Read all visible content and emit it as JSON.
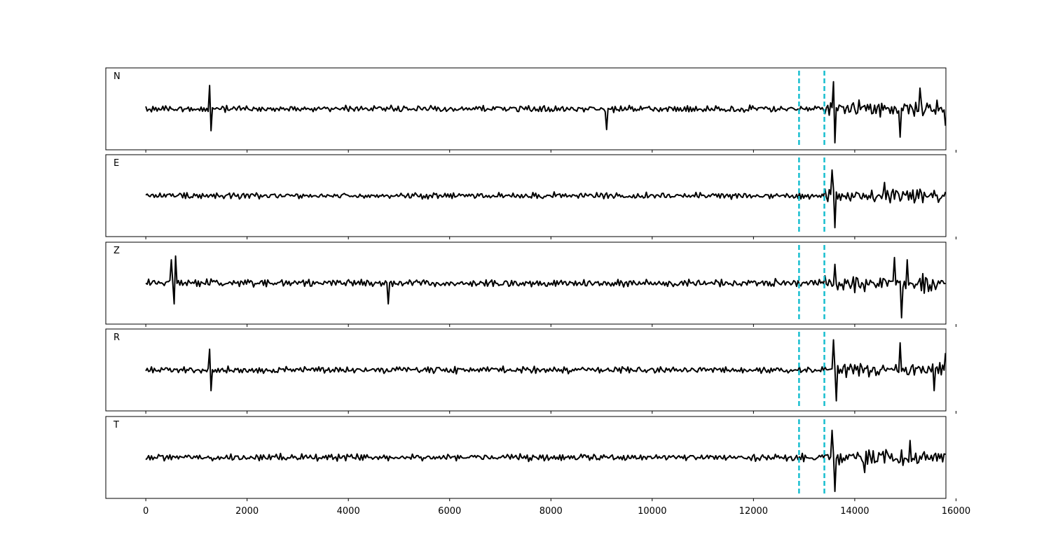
{
  "chart_data": {
    "type": "line",
    "x": {
      "range": [
        -790,
        15800
      ],
      "ticks": [
        0,
        2000,
        4000,
        6000,
        8000,
        10000,
        12000,
        14000,
        16000
      ],
      "tick_labels": [
        "0",
        "2000",
        "4000",
        "6000",
        "8000",
        "10000",
        "12000",
        "14000",
        "16000"
      ],
      "xlim": [
        -790,
        15800
      ],
      "signal_end": 15800
    },
    "ylim": [
      -1,
      1
    ],
    "grid": false,
    "series_color": "#000000",
    "marker_color": "#17becf",
    "markers": [
      12900,
      13400
    ],
    "panels": [
      {
        "label": "N",
        "noise_amplitude": 0.13,
        "peaks": [
          {
            "x": 1260,
            "y": 0.62
          },
          {
            "x": 1290,
            "y": -0.58
          },
          {
            "x": 9110,
            "y": -0.55
          },
          {
            "x": 13570,
            "y": 0.72
          },
          {
            "x": 13620,
            "y": -0.9
          },
          {
            "x": 14900,
            "y": -0.75
          },
          {
            "x": 15280,
            "y": 0.55
          },
          {
            "x": 15800,
            "y": -0.45
          }
        ]
      },
      {
        "label": "E",
        "noise_amplitude": 0.12,
        "peaks": [
          {
            "x": 13540,
            "y": 0.68
          },
          {
            "x": 13600,
            "y": -0.85
          },
          {
            "x": 14600,
            "y": 0.35
          },
          {
            "x": 15800,
            "y": 0.1
          }
        ]
      },
      {
        "label": "Z",
        "noise_amplitude": 0.14,
        "peaks": [
          {
            "x": 500,
            "y": 0.62
          },
          {
            "x": 560,
            "y": -0.55
          },
          {
            "x": 590,
            "y": 0.72
          },
          {
            "x": 4780,
            "y": -0.55
          },
          {
            "x": 13600,
            "y": 0.5
          },
          {
            "x": 14790,
            "y": 0.68
          },
          {
            "x": 14930,
            "y": -0.92
          },
          {
            "x": 15030,
            "y": 0.62
          }
        ]
      },
      {
        "label": "R",
        "noise_amplitude": 0.13,
        "peaks": [
          {
            "x": 1260,
            "y": 0.55
          },
          {
            "x": 1290,
            "y": -0.55
          },
          {
            "x": 13580,
            "y": 0.8
          },
          {
            "x": 13640,
            "y": -0.82
          },
          {
            "x": 14910,
            "y": 0.72
          },
          {
            "x": 15570,
            "y": -0.55
          },
          {
            "x": 15800,
            "y": 0.45
          }
        ]
      },
      {
        "label": "T",
        "noise_amplitude": 0.13,
        "peaks": [
          {
            "x": 13540,
            "y": 0.72
          },
          {
            "x": 13600,
            "y": -0.9
          },
          {
            "x": 14200,
            "y": -0.4
          },
          {
            "x": 15100,
            "y": 0.45
          }
        ]
      }
    ]
  }
}
